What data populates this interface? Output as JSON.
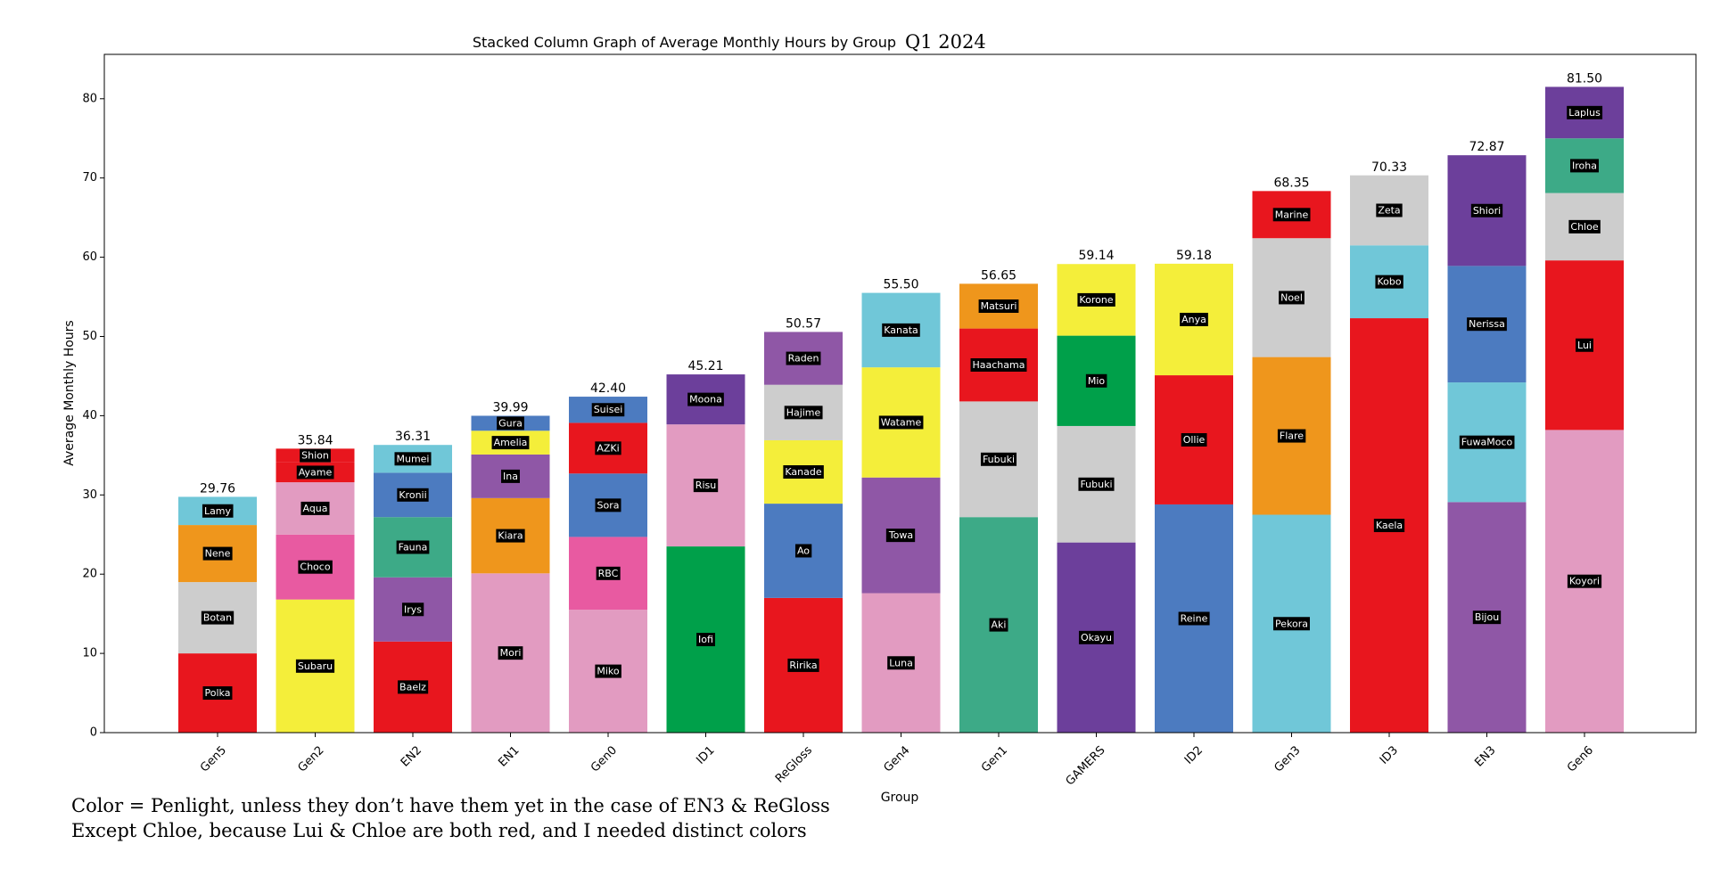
{
  "chart_data": {
    "type": "bar",
    "stacked": true,
    "title": "Stacked Column Graph of Average Monthly Hours by Group",
    "subtitle": "Q1 2024",
    "xlabel": "Group",
    "ylabel": "Average Monthly Hours",
    "ylim": [
      0,
      85.6
    ],
    "yticks": [
      0,
      10,
      20,
      30,
      40,
      50,
      60,
      70,
      80
    ],
    "grid": false,
    "categories": [
      "Gen5",
      "Gen2",
      "EN2",
      "EN1",
      "Gen0",
      "ID1",
      "ReGloss",
      "Gen4",
      "Gen1",
      "GAMERS",
      "ID2",
      "Gen3",
      "ID3",
      "EN3",
      "Gen6"
    ],
    "totals": [
      "29.76",
      "35.84",
      "36.31",
      "39.99",
      "42.40",
      "45.21",
      "50.57",
      "55.50",
      "56.65",
      "59.14",
      "59.18",
      "68.35",
      "70.33",
      "72.87",
      "81.50"
    ],
    "stacks": [
      [
        {
          "name": "Polka",
          "value": 10.0,
          "color": "#e8161e"
        },
        {
          "name": "Botan",
          "value": 9.0,
          "color": "#cdcdcd"
        },
        {
          "name": "Nene",
          "value": 7.2,
          "color": "#ef961c"
        },
        {
          "name": "Lamy",
          "value": 3.56,
          "color": "#70c7d8"
        }
      ],
      [
        {
          "name": "Subaru",
          "value": 16.8,
          "color": "#f4ee3a"
        },
        {
          "name": "Choco",
          "value": 8.2,
          "color": "#e85aa1"
        },
        {
          "name": "Aqua",
          "value": 6.6,
          "color": "#e29bc1"
        },
        {
          "name": "Ayame",
          "value": 2.5,
          "color": "#e8161e"
        },
        {
          "name": "Shion",
          "value": 1.74,
          "color": "#e8161e"
        }
      ],
      [
        {
          "name": "Baelz",
          "value": 11.5,
          "color": "#e8161e"
        },
        {
          "name": "Irys",
          "value": 8.1,
          "color": "#8f57a6"
        },
        {
          "name": "Fauna",
          "value": 7.6,
          "color": "#3daa87"
        },
        {
          "name": "Kronii",
          "value": 5.6,
          "color": "#4c7bc0"
        },
        {
          "name": "Mumei",
          "value": 3.51,
          "color": "#70c7d8"
        }
      ],
      [
        {
          "name": "Mori",
          "value": 20.1,
          "color": "#e29bc1"
        },
        {
          "name": "Kiara",
          "value": 9.5,
          "color": "#ef961c"
        },
        {
          "name": "Ina",
          "value": 5.5,
          "color": "#8f57a6"
        },
        {
          "name": "Amelia",
          "value": 3.0,
          "color": "#f4ee3a"
        },
        {
          "name": "Gura",
          "value": 1.89,
          "color": "#4c7bc0"
        }
      ],
      [
        {
          "name": "Miko",
          "value": 15.5,
          "color": "#e29bc1"
        },
        {
          "name": "RBC",
          "value": 9.2,
          "color": "#e85aa1"
        },
        {
          "name": "Sora",
          "value": 8.0,
          "color": "#4c7bc0"
        },
        {
          "name": "AZKi",
          "value": 6.4,
          "color": "#e8161e"
        },
        {
          "name": "Suisei",
          "value": 3.3,
          "color": "#4c7bc0"
        }
      ],
      [
        {
          "name": "Iofi",
          "value": 23.5,
          "color": "#00a04a"
        },
        {
          "name": "Risu",
          "value": 15.4,
          "color": "#e29bc1"
        },
        {
          "name": "Moona",
          "value": 6.31,
          "color": "#6c3f9b"
        }
      ],
      [
        {
          "name": "Ririka",
          "value": 17.0,
          "color": "#e8161e"
        },
        {
          "name": "Ao",
          "value": 11.9,
          "color": "#4c7bc0"
        },
        {
          "name": "Kanade",
          "value": 8.0,
          "color": "#f4ee3a"
        },
        {
          "name": "Hajime",
          "value": 7.0,
          "color": "#cdcdcd"
        },
        {
          "name": "Raden",
          "value": 6.67,
          "color": "#8f57a6"
        }
      ],
      [
        {
          "name": "Luna",
          "value": 17.6,
          "color": "#e29bc1"
        },
        {
          "name": "Towa",
          "value": 14.6,
          "color": "#8f57a6"
        },
        {
          "name": "Watame",
          "value": 13.9,
          "color": "#f4ee3a"
        },
        {
          "name": "Kanata",
          "value": 9.4,
          "color": "#70c7d8"
        }
      ],
      [
        {
          "name": "Aki",
          "value": 27.2,
          "color": "#3daa87"
        },
        {
          "name": "Fubuki",
          "value": 14.6,
          "color": "#cdcdcd"
        },
        {
          "name": "Haachama",
          "value": 9.2,
          "color": "#e8161e"
        },
        {
          "name": "Matsuri",
          "value": 5.65,
          "color": "#ef961c"
        }
      ],
      [
        {
          "name": "Okayu",
          "value": 24.0,
          "color": "#6c3f9b"
        },
        {
          "name": "Fubuki",
          "value": 14.7,
          "color": "#cdcdcd"
        },
        {
          "name": "Mio",
          "value": 11.4,
          "color": "#00a04a"
        },
        {
          "name": "Korone",
          "value": 9.04,
          "color": "#f4ee3a"
        }
      ],
      [
        {
          "name": "Reine",
          "value": 28.8,
          "color": "#4c7bc0"
        },
        {
          "name": "Ollie",
          "value": 16.3,
          "color": "#e8161e"
        },
        {
          "name": "Anya",
          "value": 14.08,
          "color": "#f4ee3a"
        }
      ],
      [
        {
          "name": "Pekora",
          "value": 27.5,
          "color": "#70c7d8"
        },
        {
          "name": "Flare",
          "value": 19.9,
          "color": "#ef961c"
        },
        {
          "name": "Noel",
          "value": 15.0,
          "color": "#cdcdcd"
        },
        {
          "name": "Marine",
          "value": 5.95,
          "color": "#e8161e"
        }
      ],
      [
        {
          "name": "Kaela",
          "value": 52.3,
          "color": "#e8161e"
        },
        {
          "name": "Kobo",
          "value": 9.2,
          "color": "#70c7d8"
        },
        {
          "name": "Zeta",
          "value": 8.83,
          "color": "#cdcdcd"
        }
      ],
      [
        {
          "name": "Bijou",
          "value": 29.1,
          "color": "#8f57a6"
        },
        {
          "name": "FuwaMoco",
          "value": 15.1,
          "color": "#70c7d8"
        },
        {
          "name": "Nerissa",
          "value": 14.7,
          "color": "#4c7bc0"
        },
        {
          "name": "Shiori",
          "value": 13.97,
          "color": "#6c3f9b"
        }
      ],
      [
        {
          "name": "Koyori",
          "value": 38.2,
          "color": "#e29bc1"
        },
        {
          "name": "Lui",
          "value": 21.4,
          "color": "#e8161e"
        },
        {
          "name": "Chloe",
          "value": 8.5,
          "color": "#cdcdcd"
        },
        {
          "name": "Iroha",
          "value": 6.9,
          "color": "#3daa87"
        },
        {
          "name": "Laplus",
          "value": 6.5,
          "color": "#6c3f9b"
        }
      ]
    ],
    "footnote": [
      "Color = Penlight, unless they don’t have them yet in the case of EN3 & ReGloss",
      "Except Chloe, because Lui & Chloe are both red, and I needed distinct colors"
    ]
  }
}
